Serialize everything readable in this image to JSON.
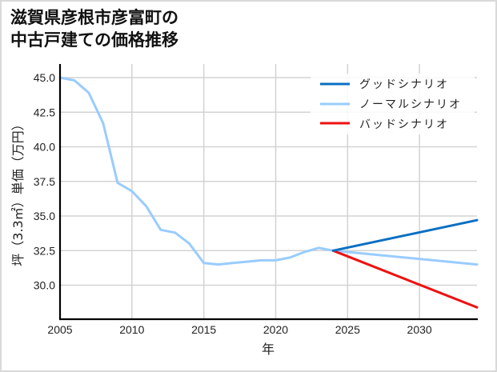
{
  "title": {
    "line1": "滋賀県彦根市彦富町の",
    "line2": "中古戸建ての価格推移"
  },
  "colors": {
    "good": "#0a6fc2",
    "normal": "#99ccff",
    "bad": "#ee1111",
    "grid": "#d3d3d3",
    "axis": "#000000"
  },
  "chart_data": {
    "type": "line",
    "title": "滋賀県彦根市彦富町の中古戸建ての価格推移",
    "xlabel": "年",
    "ylabel": "坪（3.3㎡）単価（万円）",
    "xlim": [
      2005,
      2034
    ],
    "ylim": [
      27.6,
      45.9
    ],
    "xticks": [
      2005,
      2010,
      2015,
      2020,
      2025,
      2030
    ],
    "yticks": [
      30.0,
      32.5,
      35.0,
      37.5,
      40.0,
      42.5,
      45.0
    ],
    "grid": true,
    "legend_position": "upper right",
    "legend": [
      "グッドシナリオ",
      "ノーマルシナリオ",
      "バッドシナリオ"
    ],
    "series": [
      {
        "name": "ノーマルシナリオ (実績)",
        "color": "#99ccff",
        "x": [
          2005,
          2006,
          2007,
          2008,
          2009,
          2010,
          2011,
          2012,
          2013,
          2014,
          2015,
          2016,
          2017,
          2018,
          2019,
          2020,
          2021,
          2022,
          2023,
          2024
        ],
        "values": [
          45.0,
          44.8,
          43.9,
          41.7,
          37.4,
          36.8,
          35.7,
          34.0,
          33.8,
          33.0,
          31.6,
          31.5,
          31.6,
          31.7,
          31.8,
          31.8,
          32.0,
          32.4,
          32.7,
          32.5
        ]
      },
      {
        "name": "グッドシナリオ",
        "color": "#0a6fc2",
        "x": [
          2024,
          2034
        ],
        "values": [
          32.5,
          34.7
        ]
      },
      {
        "name": "ノーマルシナリオ",
        "color": "#99ccff",
        "x": [
          2024,
          2034
        ],
        "values": [
          32.5,
          31.5
        ]
      },
      {
        "name": "バッドシナリオ",
        "color": "#ee1111",
        "x": [
          2024,
          2034
        ],
        "values": [
          32.5,
          28.4
        ]
      }
    ]
  },
  "axes": {
    "xlabel": "年",
    "ylabel": "坪（3.3㎡）単価（万円）",
    "xtick_labels": [
      "2005",
      "2010",
      "2015",
      "2020",
      "2025",
      "2030"
    ],
    "ytick_labels": [
      "45.0",
      "42.5",
      "40.0",
      "37.5",
      "35.0",
      "32.5",
      "30.0"
    ]
  },
  "legend": {
    "items": [
      {
        "label": "グッドシナリオ"
      },
      {
        "label": "ノーマルシナリオ"
      },
      {
        "label": "バッドシナリオ"
      }
    ]
  }
}
